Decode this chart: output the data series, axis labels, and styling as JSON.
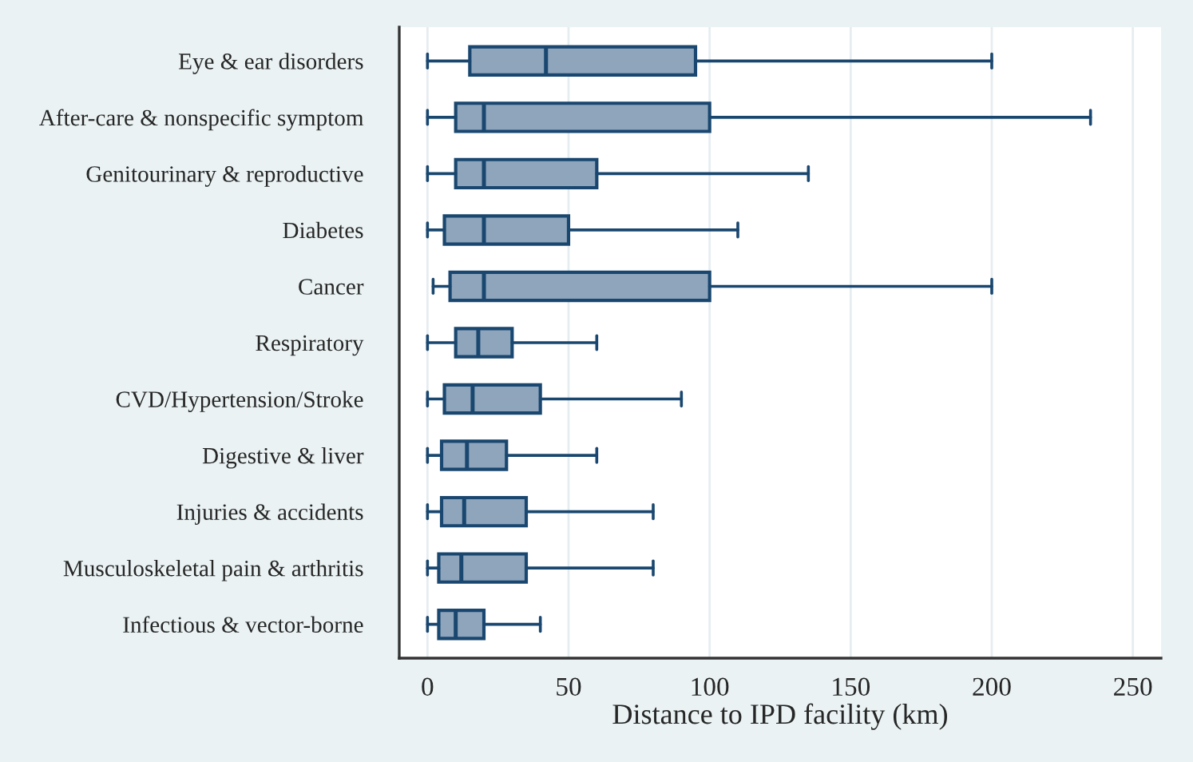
{
  "chart_data": {
    "type": "box",
    "orientation": "horizontal",
    "xlabel": "Distance to IPD facility (km)",
    "categories": [
      "Eye & ear disorders",
      "After-care & nonspecific symptom",
      "Genitourinary & reproductive",
      "Diabetes",
      "Cancer",
      "Respiratory",
      "CVD/Hypertension/Stroke",
      "Digestive & liver",
      "Injuries & accidents",
      "Musculoskeletal pain & arthritis",
      "Infectious & vector-borne"
    ],
    "boxes": [
      {
        "low": 0,
        "q1": 15,
        "median": 42,
        "q3": 95,
        "high": 200
      },
      {
        "low": 0,
        "q1": 10,
        "median": 20,
        "q3": 100,
        "high": 235
      },
      {
        "low": 0,
        "q1": 10,
        "median": 20,
        "q3": 60,
        "high": 135
      },
      {
        "low": 0,
        "q1": 6,
        "median": 20,
        "q3": 50,
        "high": 110
      },
      {
        "low": 2,
        "q1": 8,
        "median": 20,
        "q3": 100,
        "high": 200
      },
      {
        "low": 0,
        "q1": 10,
        "median": 18,
        "q3": 30,
        "high": 60
      },
      {
        "low": 0,
        "q1": 6,
        "median": 16,
        "q3": 40,
        "high": 90
      },
      {
        "low": 0,
        "q1": 5,
        "median": 14,
        "q3": 28,
        "high": 60
      },
      {
        "low": 0,
        "q1": 5,
        "median": 13,
        "q3": 35,
        "high": 80
      },
      {
        "low": 0,
        "q1": 4,
        "median": 12,
        "q3": 35,
        "high": 80
      },
      {
        "low": 0,
        "q1": 4,
        "median": 10,
        "q3": 20,
        "high": 40
      }
    ],
    "color": "#8ea5bc",
    "xlim": [
      -10,
      260
    ],
    "xticks": [
      0,
      50,
      100,
      150,
      200,
      250
    ],
    "grid": "x"
  }
}
